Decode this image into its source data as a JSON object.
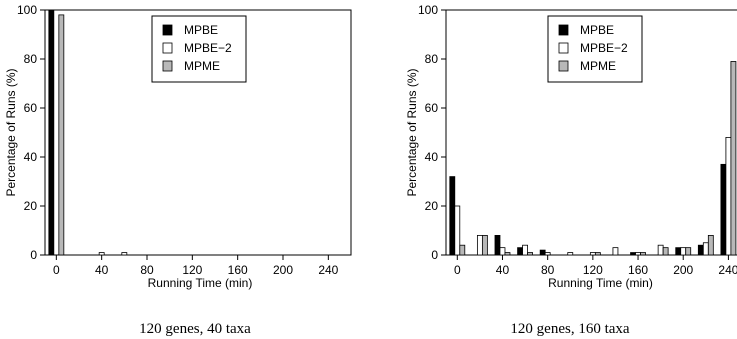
{
  "chart_data": [
    {
      "type": "bar",
      "panel_id": "left",
      "caption": "120 genes, 40 taxa",
      "xlabel": "Running Time (min)",
      "ylabel": "Percentage of Runs (%)",
      "xticks": [
        "0",
        "40",
        "80",
        "120",
        "160",
        "200",
        "240"
      ],
      "yticks": [
        "0",
        "20",
        "40",
        "60",
        "80",
        "100"
      ],
      "xlim": [
        -10,
        260
      ],
      "ylim": [
        0,
        100
      ],
      "bin_width": 20,
      "x": [
        0,
        20,
        40,
        60,
        80,
        100,
        120,
        140,
        160,
        180,
        200,
        220,
        240
      ],
      "legend_position": "top-center",
      "series": [
        {
          "name": "MPBE",
          "color": "#000000",
          "values": [
            100,
            0,
            0,
            0,
            0,
            0,
            0,
            0,
            0,
            0,
            0,
            0,
            0
          ]
        },
        {
          "name": "MPBE−2",
          "color": "#ffffff",
          "values": [
            0,
            0,
            1,
            1,
            0,
            0,
            0,
            0,
            0,
            0,
            0,
            0,
            0
          ]
        },
        {
          "name": "MPME",
          "color": "#b8b8b8",
          "values": [
            98,
            0,
            0,
            0,
            0,
            0,
            0,
            0,
            0,
            0,
            0,
            0,
            0
          ]
        }
      ]
    },
    {
      "type": "bar",
      "panel_id": "right",
      "caption": "120 genes, 160 taxa",
      "xlabel": "Running Time (min)",
      "ylabel": "Percentage of Runs (%)",
      "xticks": [
        "0",
        "40",
        "80",
        "120",
        "160",
        "200",
        "240"
      ],
      "yticks": [
        "0",
        "20",
        "40",
        "60",
        "80",
        "100"
      ],
      "xlim": [
        -10,
        260
      ],
      "ylim": [
        0,
        100
      ],
      "bin_width": 20,
      "x": [
        0,
        20,
        40,
        60,
        80,
        100,
        120,
        140,
        160,
        180,
        200,
        220,
        240
      ],
      "legend_position": "top-center",
      "series": [
        {
          "name": "MPBE",
          "color": "#000000",
          "values": [
            32,
            0,
            8,
            3,
            2,
            0,
            0,
            0,
            1,
            0,
            3,
            4,
            37
          ]
        },
        {
          "name": "MPBE−2",
          "color": "#ffffff",
          "values": [
            20,
            8,
            3,
            4,
            1,
            1,
            1,
            3,
            1,
            4,
            3,
            5,
            48
          ]
        },
        {
          "name": "MPME",
          "color": "#b8b8b8",
          "values": [
            4,
            8,
            1,
            1,
            0,
            0,
            1,
            0,
            1,
            3,
            3,
            8,
            79
          ]
        }
      ]
    }
  ]
}
